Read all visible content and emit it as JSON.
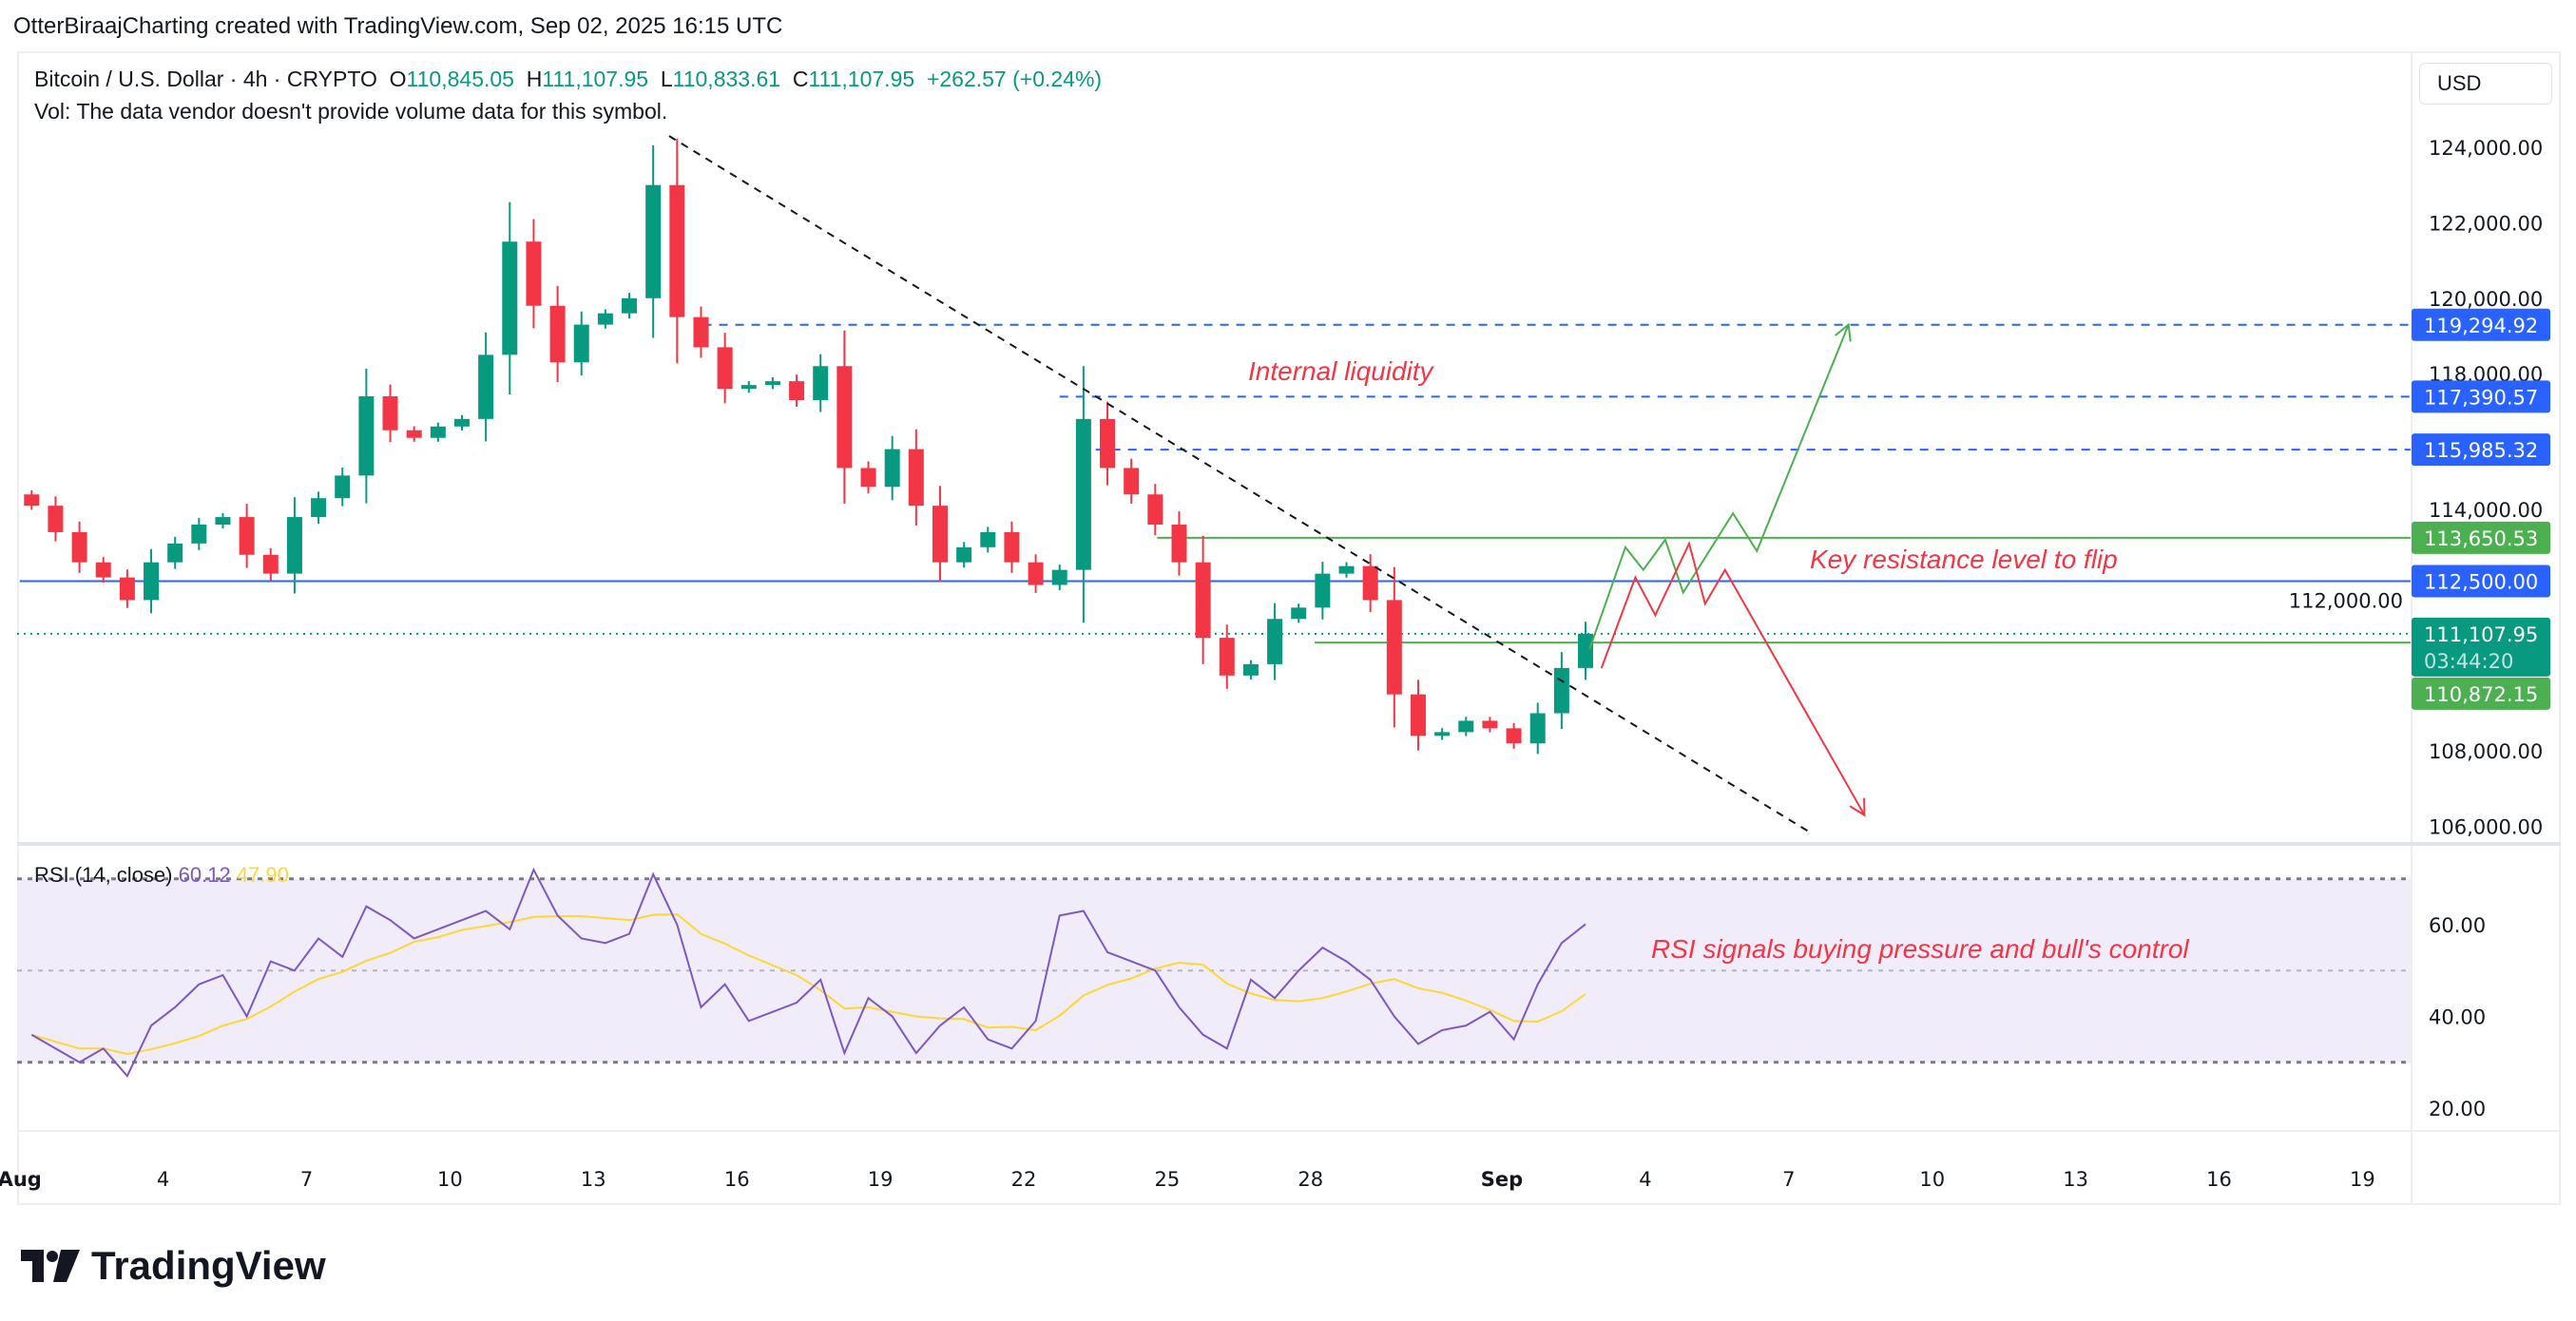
{
  "credit": "OtterBiraajCharting created with TradingView.com, Sep 02, 2025 16:15 UTC",
  "legend": {
    "symbol": "Bitcoin / U.S. Dollar · 4h · CRYPTO",
    "o_label": "O",
    "o": "110,845.05",
    "h_label": "H",
    "h": "111,107.95",
    "l_label": "L",
    "l": "110,833.61",
    "c_label": "C",
    "c": "111,107.95",
    "change": "+262.57 (+0.24%)",
    "vol": "Vol: The data vendor doesn't provide volume data for this symbol."
  },
  "currency": "USD",
  "rsi_legend": {
    "name": "RSI (14, close)",
    "value": "60.12",
    "ma": "47.90"
  },
  "logo": "TradingView",
  "colors": {
    "up": "#089981",
    "down": "#f23645",
    "blue": "#2962ff",
    "green": "#4caf50",
    "rsi": "#7e57c2",
    "rsi_ma": "#fdd835",
    "rsi_band": "#f0ecf9"
  },
  "chart_data": {
    "type": "candlestick",
    "price_ticks": [
      "124,000.00",
      "122,000.00",
      "120,000.00",
      "118,000.00",
      "114,000.00",
      "112,000.00",
      "108,000.00",
      "106,000.00"
    ],
    "price_tick_values": [
      124000,
      122000,
      120000,
      118000,
      114000,
      112000,
      108000,
      106000
    ],
    "time_ticks": [
      "Aug",
      "4",
      "7",
      "10",
      "13",
      "16",
      "19",
      "22",
      "25",
      "28",
      "Sep",
      "4",
      "7",
      "10",
      "13",
      "16",
      "19"
    ],
    "time_tick_dates": [
      "2025-08-01",
      "2025-08-04",
      "2025-08-07",
      "2025-08-10",
      "2025-08-13",
      "2025-08-16",
      "2025-08-19",
      "2025-08-22",
      "2025-08-25",
      "2025-08-28",
      "2025-09-01",
      "2025-09-04",
      "2025-09-07",
      "2025-09-10",
      "2025-09-13",
      "2025-09-16",
      "2025-09-19"
    ],
    "closes": [
      114500,
      113800,
      113000,
      112600,
      112000,
      113000,
      113500,
      114000,
      114200,
      113200,
      112700,
      114200,
      114700,
      115300,
      117400,
      116500,
      116300,
      116600,
      116800,
      118500,
      121500,
      119800,
      118300,
      119300,
      119600,
      120000,
      123000,
      119500,
      118700,
      117600,
      117700,
      117800,
      117300,
      118200,
      115500,
      115000,
      116000,
      114500,
      113000,
      113400,
      113800,
      113000,
      112400,
      112800,
      116800,
      115500,
      114800,
      114000,
      113000,
      111000,
      110000,
      110300,
      111500,
      111800,
      112700,
      112900,
      112000,
      109500,
      108400,
      108500,
      108800,
      108600,
      108200,
      109000,
      110200,
      111107.95
    ],
    "price_labels": [
      {
        "value": "119,294.92",
        "price": 119294.92,
        "color": "#2962ff",
        "from": "2025-08-15T07:00",
        "style": "dashed"
      },
      {
        "value": "117,390.57",
        "price": 117390.57,
        "color": "#2962ff",
        "from": "2025-08-22T18:00",
        "style": "dashed"
      },
      {
        "value": "115,985.32",
        "price": 115985.32,
        "color": "#2962ff",
        "from": "2025-08-23T04:00",
        "style": "dashed"
      },
      {
        "value": "113,650.53",
        "price": 113650.53,
        "color": "#4caf50",
        "from": "2025-08-24T19:00",
        "style": "solid"
      },
      {
        "value": "112,500.00",
        "price": 112500,
        "color": "#2962ff",
        "from": "2025-08-01T00:00",
        "style": "solid"
      },
      {
        "value": "110,872.15",
        "price": 110872.15,
        "color": "#4caf50",
        "from": "2025-08-28T02:00",
        "style": "solid"
      }
    ],
    "last_price": {
      "value": "111,107.95",
      "price": 111107.95,
      "countdown": "03:44:20",
      "color": "#089981"
    },
    "trendline": [
      [
        "2025-08-14T14:00",
        124300
      ],
      [
        "2025-09-07T12:00",
        105800
      ]
    ],
    "bull_path": [
      [
        "2025-09-02T20:00",
        110700
      ],
      [
        "2025-09-03T14:00",
        113400
      ],
      [
        "2025-09-03T23:00",
        112800
      ],
      [
        "2025-09-04T10:00",
        113600
      ],
      [
        "2025-09-04T19:00",
        112200
      ],
      [
        "2025-09-05T20:00",
        114300
      ],
      [
        "2025-09-06T08:00",
        113300
      ],
      [
        "2025-09-08T06:00",
        119300
      ]
    ],
    "bear_path": [
      [
        "2025-09-03T02:00",
        110200
      ],
      [
        "2025-09-03T19:00",
        112600
      ],
      [
        "2025-09-04T05:00",
        111600
      ],
      [
        "2025-09-04T22:00",
        113500
      ],
      [
        "2025-09-05T06:00",
        111900
      ],
      [
        "2025-09-05T16:00",
        112800
      ],
      [
        "2025-09-08T14:00",
        106300
      ]
    ],
    "annotations": [
      "Internal liquidity",
      "Key resistance level to flip",
      "RSI signals buying pressure and bull's control"
    ],
    "rsi": {
      "ticks": [
        "60.00",
        "40.00",
        "20.00"
      ],
      "tick_values": [
        60,
        40,
        20
      ],
      "bands": [
        70,
        50,
        30
      ],
      "values": [
        36,
        33,
        30,
        33,
        27,
        38,
        42,
        47,
        49,
        40,
        52,
        50,
        57,
        53,
        64,
        61,
        57,
        59,
        61,
        63,
        59,
        72,
        62,
        57,
        56,
        58,
        71,
        60,
        42,
        47,
        39,
        41,
        43,
        48,
        32,
        44,
        40,
        32,
        38,
        42,
        35,
        33,
        39,
        62,
        63,
        54,
        52,
        50,
        42,
        36,
        33,
        48,
        44,
        50,
        55,
        52,
        48,
        40,
        34,
        37,
        38,
        41,
        35,
        47,
        56,
        60.12
      ]
    }
  }
}
